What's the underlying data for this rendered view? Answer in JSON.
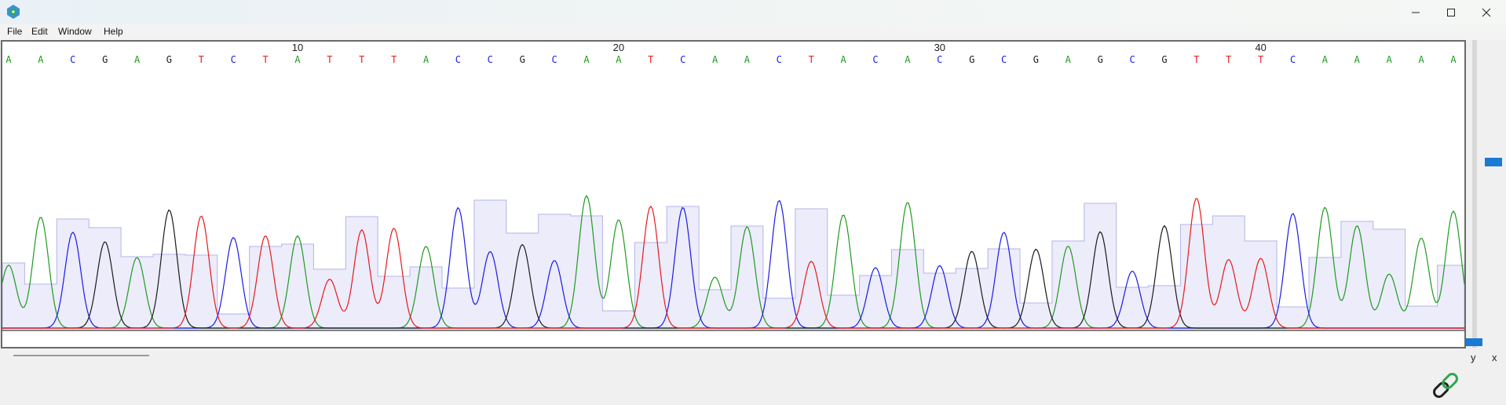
{
  "window": {
    "icon": "app-logo-icon",
    "controls": [
      "minimize-icon",
      "maximize-icon",
      "close-icon"
    ]
  },
  "menu": {
    "file": "File",
    "edit": "Edit",
    "window": "Window",
    "help": "Help"
  },
  "trace": {
    "sequence": "AACGAGTCTATTTACCGCAATCAACTACACGCGAGCGTTTCAAAAA",
    "position_labels": [
      "10",
      "20",
      "30",
      "40"
    ],
    "colors": {
      "A": "#1f9a1f",
      "C": "#1a1ae6",
      "G": "#1a1a1a",
      "T": "#e61a1a"
    },
    "quality_fill": "#ececfb",
    "quality_stroke": "#b4b4e8"
  },
  "scale_controls": {
    "y_label": "y",
    "x_label": "x"
  },
  "link_icon": "link-icon"
}
